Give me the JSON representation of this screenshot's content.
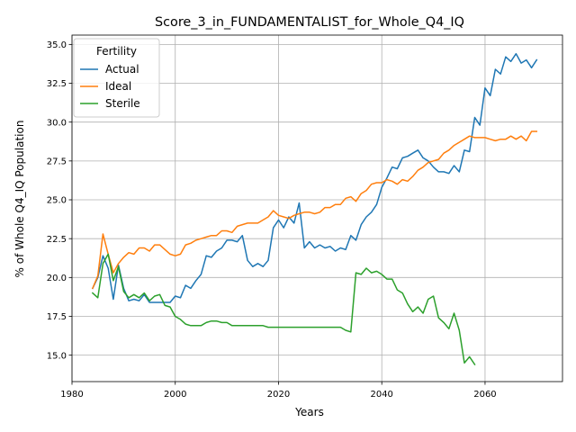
{
  "chart_data": {
    "type": "line",
    "title": "Score_3_in_FUNDAMENTALIST_for_Whole_Q4_IQ",
    "xlabel": "Years",
    "ylabel": "% of Whole Q4_IQ Population",
    "xlim": [
      1980,
      2075
    ],
    "ylim": [
      13.3,
      35.6
    ],
    "xticks": [
      1980,
      2000,
      2020,
      2040,
      2060
    ],
    "yticks": [
      15.0,
      17.5,
      20.0,
      22.5,
      25.0,
      27.5,
      30.0,
      32.5,
      35.0
    ],
    "xtick_labels": [
      "1980",
      "2000",
      "2020",
      "2040",
      "2060"
    ],
    "ytick_labels": [
      "15.0",
      "17.5",
      "20.0",
      "22.5",
      "25.0",
      "27.5",
      "30.0",
      "32.5",
      "35.0"
    ],
    "grid": true,
    "legend": {
      "title": "Fertility",
      "placement": "top-left"
    },
    "series": [
      {
        "name": "Actual",
        "color": "#1f77b4",
        "x": [
          1984,
          1985,
          1986,
          1987,
          1988,
          1989,
          1990,
          1991,
          1992,
          1993,
          1994,
          1995,
          1996,
          1997,
          1998,
          1999,
          2000,
          2001,
          2002,
          2003,
          2004,
          2005,
          2006,
          2007,
          2008,
          2009,
          2010,
          2011,
          2012,
          2013,
          2014,
          2015,
          2016,
          2017,
          2018,
          2019,
          2020,
          2021,
          2022,
          2023,
          2024,
          2025,
          2026,
          2027,
          2028,
          2029,
          2030,
          2031,
          2032,
          2033,
          2034,
          2035,
          2036,
          2037,
          2038,
          2039,
          2040,
          2041,
          2042,
          2043,
          2044,
          2045,
          2046,
          2047,
          2048,
          2049,
          2050,
          2051,
          2052,
          2053,
          2054,
          2055,
          2056,
          2057,
          2058,
          2059,
          2060,
          2061,
          2062,
          2063,
          2064,
          2065,
          2066,
          2067,
          2068,
          2069,
          2070
        ],
        "values": [
          19.3,
          20.0,
          21.4,
          20.6,
          18.6,
          20.8,
          19.3,
          18.5,
          18.6,
          18.5,
          18.9,
          18.4,
          18.4,
          18.4,
          18.4,
          18.4,
          18.8,
          18.7,
          19.5,
          19.3,
          19.8,
          20.2,
          21.4,
          21.3,
          21.7,
          21.9,
          22.4,
          22.4,
          22.3,
          22.7,
          21.1,
          20.7,
          20.9,
          20.7,
          21.1,
          23.2,
          23.7,
          23.2,
          23.9,
          23.5,
          24.8,
          21.9,
          22.3,
          21.9,
          22.1,
          21.9,
          22.0,
          21.7,
          21.9,
          21.8,
          22.7,
          22.4,
          23.4,
          23.9,
          24.2,
          24.7,
          25.8,
          26.4,
          27.1,
          27.0,
          27.7,
          27.8,
          28.0,
          28.2,
          27.7,
          27.5,
          27.1,
          26.8,
          26.8,
          26.7,
          27.2,
          26.8,
          28.2,
          28.1,
          30.3,
          29.8,
          32.2,
          31.7,
          33.4,
          33.1,
          34.2,
          33.9,
          34.4,
          33.8,
          34.0,
          33.5,
          34.0
        ]
      },
      {
        "name": "Ideal",
        "color": "#ff7f0e",
        "x": [
          1984,
          1985,
          1986,
          1987,
          1988,
          1989,
          1990,
          1991,
          1992,
          1993,
          1994,
          1995,
          1996,
          1997,
          1998,
          1999,
          2000,
          2001,
          2002,
          2003,
          2004,
          2005,
          2006,
          2007,
          2008,
          2009,
          2010,
          2011,
          2012,
          2013,
          2014,
          2015,
          2016,
          2017,
          2018,
          2019,
          2020,
          2021,
          2022,
          2023,
          2024,
          2025,
          2026,
          2027,
          2028,
          2029,
          2030,
          2031,
          2032,
          2033,
          2034,
          2035,
          2036,
          2037,
          2038,
          2039,
          2040,
          2041,
          2042,
          2043,
          2044,
          2045,
          2046,
          2047,
          2048,
          2049,
          2050,
          2051,
          2052,
          2053,
          2054,
          2055,
          2056,
          2057,
          2058,
          2059,
          2060,
          2061,
          2062,
          2063,
          2064,
          2065,
          2066,
          2067,
          2068,
          2069,
          2070
        ],
        "values": [
          19.3,
          20.1,
          22.8,
          21.5,
          20.3,
          20.9,
          21.3,
          21.6,
          21.5,
          21.9,
          21.9,
          21.7,
          22.1,
          22.1,
          21.8,
          21.5,
          21.4,
          21.5,
          22.1,
          22.2,
          22.4,
          22.5,
          22.6,
          22.7,
          22.7,
          23.0,
          23.0,
          22.9,
          23.3,
          23.4,
          23.5,
          23.5,
          23.5,
          23.7,
          23.9,
          24.3,
          24.0,
          23.9,
          23.8,
          24.0,
          24.1,
          24.2,
          24.2,
          24.1,
          24.2,
          24.5,
          24.5,
          24.7,
          24.7,
          25.1,
          25.2,
          24.9,
          25.4,
          25.6,
          26.0,
          26.1,
          26.1,
          26.3,
          26.2,
          26.0,
          26.3,
          26.2,
          26.5,
          26.9,
          27.1,
          27.4,
          27.5,
          27.6,
          28.0,
          28.2,
          28.5,
          28.7,
          28.9,
          29.1,
          29.0,
          29.0,
          29.0,
          28.9,
          28.8,
          28.9,
          28.9,
          29.1,
          28.9,
          29.1,
          28.8,
          29.4,
          29.4
        ]
      },
      {
        "name": "Sterile",
        "color": "#2ca02c",
        "x": [
          1984,
          1985,
          1986,
          1987,
          1988,
          1989,
          1990,
          1991,
          1992,
          1993,
          1994,
          1995,
          1996,
          1997,
          1998,
          1999,
          2000,
          2001,
          2002,
          2003,
          2004,
          2005,
          2006,
          2007,
          2008,
          2009,
          2010,
          2011,
          2012,
          2013,
          2014,
          2015,
          2016,
          2017,
          2018,
          2019,
          2020,
          2021,
          2022,
          2023,
          2024,
          2025,
          2026,
          2027,
          2028,
          2029,
          2030,
          2031,
          2032,
          2033,
          2034,
          2035,
          2036,
          2037,
          2038,
          2039,
          2040,
          2041,
          2042,
          2043,
          2044,
          2045,
          2046,
          2047,
          2048,
          2049,
          2050,
          2051,
          2052,
          2053,
          2054,
          2055,
          2056,
          2057,
          2058
        ],
        "values": [
          19.0,
          18.7,
          20.9,
          21.5,
          19.8,
          20.7,
          19.1,
          18.7,
          18.9,
          18.7,
          19.0,
          18.5,
          18.8,
          18.9,
          18.2,
          18.1,
          17.5,
          17.3,
          17.0,
          16.9,
          16.9,
          16.9,
          17.1,
          17.2,
          17.2,
          17.1,
          17.1,
          16.9,
          16.9,
          16.9,
          16.9,
          16.9,
          16.9,
          16.9,
          16.8,
          16.8,
          16.8,
          16.8,
          16.8,
          16.8,
          16.8,
          16.8,
          16.8,
          16.8,
          16.8,
          16.8,
          16.8,
          16.8,
          16.8,
          16.6,
          16.5,
          20.3,
          20.2,
          20.6,
          20.3,
          20.4,
          20.2,
          19.9,
          19.9,
          19.2,
          19.0,
          18.3,
          17.8,
          18.1,
          17.7,
          18.6,
          18.8,
          17.4,
          17.1,
          16.7,
          17.7,
          16.6,
          14.5,
          14.9,
          14.4
        ]
      }
    ]
  }
}
